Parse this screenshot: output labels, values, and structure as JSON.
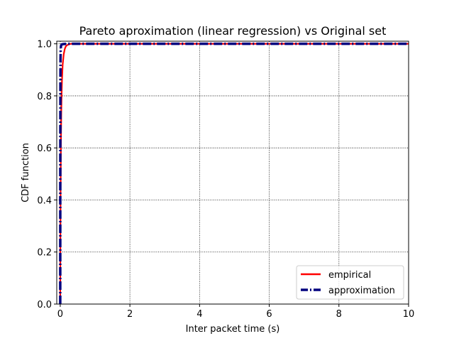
{
  "chart_data": {
    "type": "line",
    "title": "Pareto aproximation (linear regression) vs Original set",
    "xlabel": "Inter packet time (s)",
    "ylabel": "CDF function",
    "xlim": [
      -0.1,
      10
    ],
    "ylim": [
      0,
      1.01
    ],
    "xticks": [
      0,
      2,
      4,
      6,
      8,
      10
    ],
    "xtick_labels": [
      "0",
      "2",
      "4",
      "6",
      "8",
      "10"
    ],
    "yticks": [
      0.0,
      0.2,
      0.4,
      0.6,
      0.8,
      1.0
    ],
    "ytick_labels": [
      "0.0",
      "0.2",
      "0.4",
      "0.6",
      "0.8",
      "1.0"
    ],
    "grid": true,
    "legend_position": "lower-right",
    "series": [
      {
        "name": "empirical",
        "color": "#ff0000",
        "style": "solid",
        "x": [
          0.0,
          0.005,
          0.01,
          0.02,
          0.03,
          0.04,
          0.05,
          0.07,
          0.1,
          0.13,
          0.16,
          0.2,
          0.25,
          0.3,
          0.4,
          0.5,
          1,
          2,
          4,
          6,
          8,
          10
        ],
        "y": [
          0.0,
          0.25,
          0.42,
          0.62,
          0.74,
          0.81,
          0.86,
          0.92,
          0.96,
          0.98,
          0.99,
          0.995,
          0.998,
          1.0,
          1.0,
          1.0,
          1.0,
          1.0,
          1.0,
          1.0,
          1.0,
          1.0
        ]
      },
      {
        "name": "approximation",
        "color": "#00007f",
        "style": "dashdot",
        "x": [
          0.0,
          0.002,
          0.005,
          0.008,
          0.012,
          0.02,
          0.03,
          0.05,
          0.1,
          0.2,
          0.5,
          1,
          2,
          4,
          6,
          8,
          10
        ],
        "y": [
          0.0,
          0.55,
          0.85,
          0.94,
          0.975,
          0.99,
          0.995,
          0.998,
          0.999,
          1.0,
          1.0,
          1.0,
          1.0,
          1.0,
          1.0,
          1.0,
          1.0
        ]
      }
    ]
  }
}
